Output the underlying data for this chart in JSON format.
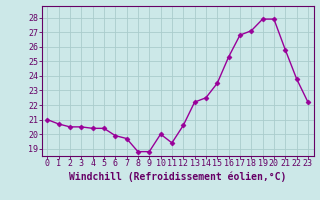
{
  "x": [
    0,
    1,
    2,
    3,
    4,
    5,
    6,
    7,
    8,
    9,
    10,
    11,
    12,
    13,
    14,
    15,
    16,
    17,
    18,
    19,
    20,
    21,
    22,
    23
  ],
  "y": [
    21.0,
    20.7,
    20.5,
    20.5,
    20.4,
    20.4,
    19.9,
    19.7,
    18.8,
    18.8,
    20.0,
    19.4,
    20.6,
    22.2,
    22.5,
    23.5,
    25.3,
    26.8,
    27.1,
    27.9,
    27.9,
    25.8,
    23.8,
    22.2
  ],
  "line_color": "#990099",
  "marker": "D",
  "markersize": 2.5,
  "linewidth": 1.0,
  "bg_color": "#cce8e8",
  "grid_color": "#aacccc",
  "yticks": [
    19,
    20,
    21,
    22,
    23,
    24,
    25,
    26,
    27,
    28
  ],
  "xticks": [
    0,
    1,
    2,
    3,
    4,
    5,
    6,
    7,
    8,
    9,
    10,
    11,
    12,
    13,
    14,
    15,
    16,
    17,
    18,
    19,
    20,
    21,
    22,
    23
  ],
  "xlabel": "Windchill (Refroidissement éolien,°C)",
  "ylim": [
    18.5,
    28.8
  ],
  "xlim": [
    -0.5,
    23.5
  ],
  "tick_fontsize": 6,
  "label_fontsize": 7,
  "tick_color": "#660066",
  "label_color": "#660066",
  "spine_color": "#660066"
}
